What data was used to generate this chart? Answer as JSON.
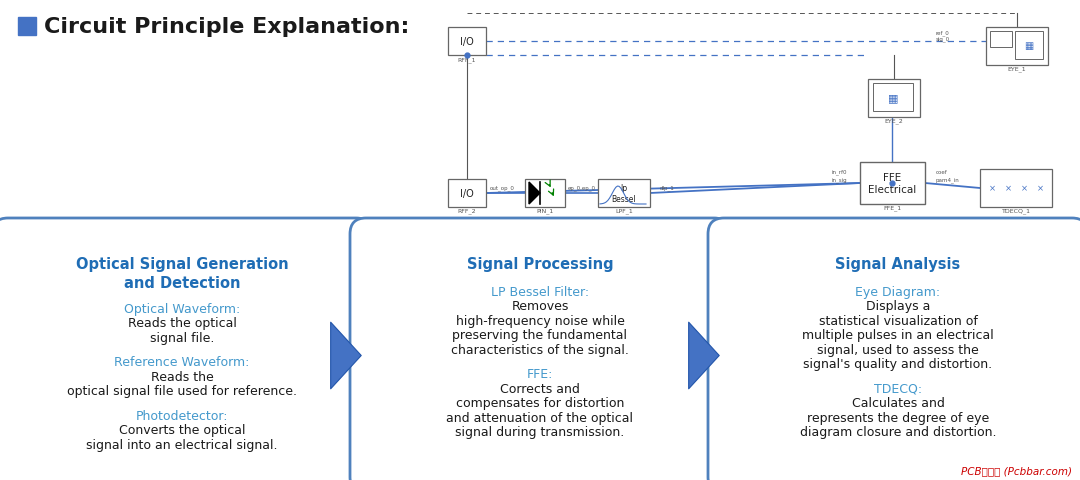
{
  "bg": "#ffffff",
  "title_text": "Circuit Principle Explanation:",
  "title_color": "#1a1a1a",
  "title_square": "#4472C4",
  "box_edge": "#4F81BD",
  "arrow_color": "#4472C4",
  "boxes": [
    {
      "title": "Optical Signal Generation\nand Detection",
      "title_color": "#1F6DB5",
      "paragraphs": [
        {
          "label": "Optical Waveform:",
          "label_color": "#4499CC",
          "lines": [
            "Reads the optical",
            "signal file."
          ]
        },
        {
          "label": "Reference Waveform:",
          "label_color": "#4499CC",
          "lines": [
            "Reads the",
            "optical signal file used for reference."
          ]
        },
        {
          "label": "Photodetector:",
          "label_color": "#4499CC",
          "lines": [
            "Converts the optical",
            "signal into an electrical signal."
          ]
        }
      ]
    },
    {
      "title": "Signal Processing",
      "title_color": "#1F6DB5",
      "paragraphs": [
        {
          "label": "LP Bessel Filter:",
          "label_color": "#4499CC",
          "lines": [
            "Removes",
            "high-frequency noise while",
            "preserving the fundamental",
            "characteristics of the signal."
          ]
        },
        {
          "label": "FFE:",
          "label_color": "#4499CC",
          "lines": [
            "Corrects and",
            "compensates for distortion",
            "and attenuation of the optical",
            "signal during transmission."
          ]
        }
      ]
    },
    {
      "title": "Signal Analysis",
      "title_color": "#1F6DB5",
      "paragraphs": [
        {
          "label": "Eye Diagram:",
          "label_color": "#4499CC",
          "lines": [
            "Displays a",
            "statistical visualization of",
            "multiple pulses in an electrical",
            "signal, used to assess the",
            "signal's quality and distortion."
          ]
        },
        {
          "label": "TDECQ:",
          "label_color": "#4499CC",
          "lines": [
            "Calculates and",
            "represents the degree of eye",
            "diagram closure and distortion."
          ]
        }
      ]
    }
  ],
  "watermark": "PCB联盟网 (Pcbbar.com)",
  "watermark_color": "#cc0000"
}
